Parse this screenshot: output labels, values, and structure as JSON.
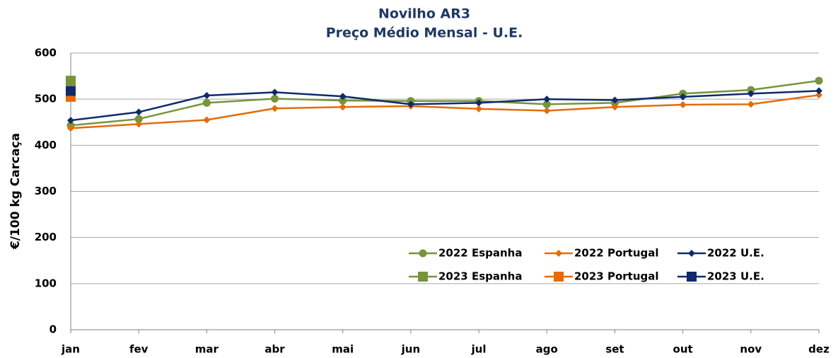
{
  "chart_data": {
    "type": "line",
    "title": "Novilho AR3",
    "subtitle": "Preço Médio Mensal - U.E.",
    "y_label": "€/100 kg  Carcaça",
    "categories": [
      "jan",
      "fev",
      "mar",
      "abr",
      "mai",
      "jun",
      "jul",
      "ago",
      "set",
      "out",
      "nov",
      "dez"
    ],
    "ylim": [
      0,
      600
    ],
    "yticks": [
      0,
      100,
      200,
      300,
      400,
      500,
      600
    ],
    "grid": true,
    "series": [
      {
        "name": "2022 Espanha",
        "color": "#77933c",
        "marker": "circle",
        "values": [
          443,
          457,
          492,
          501,
          497,
          496,
          496,
          489,
          492,
          512,
          520,
          540
        ]
      },
      {
        "name": "2022 Portugal",
        "color": "#e46c0a",
        "marker": "diamond",
        "values": [
          437,
          446,
          455,
          480,
          483,
          485,
          479,
          475,
          483,
          488,
          489,
          509
        ]
      },
      {
        "name": "2022 U.E.",
        "color": "#0f2a6b",
        "marker": "diamond",
        "values": [
          454,
          472,
          508,
          515,
          506,
          489,
          492,
          500,
          498,
          505,
          512,
          518
        ]
      },
      {
        "name": "2023 Espanha",
        "color": "#77933c",
        "marker": "square",
        "values": [
          540,
          null,
          null,
          null,
          null,
          null,
          null,
          null,
          null,
          null,
          null,
          null
        ]
      },
      {
        "name": "2023 Portugal",
        "color": "#e46c0a",
        "marker": "square",
        "values": [
          505,
          null,
          null,
          null,
          null,
          null,
          null,
          null,
          null,
          null,
          null,
          null
        ]
      },
      {
        "name": "2023 U.E.",
        "color": "#0f2a6b",
        "marker": "square",
        "values": [
          518,
          null,
          null,
          null,
          null,
          null,
          null,
          null,
          null,
          null,
          null,
          null
        ]
      }
    ]
  }
}
